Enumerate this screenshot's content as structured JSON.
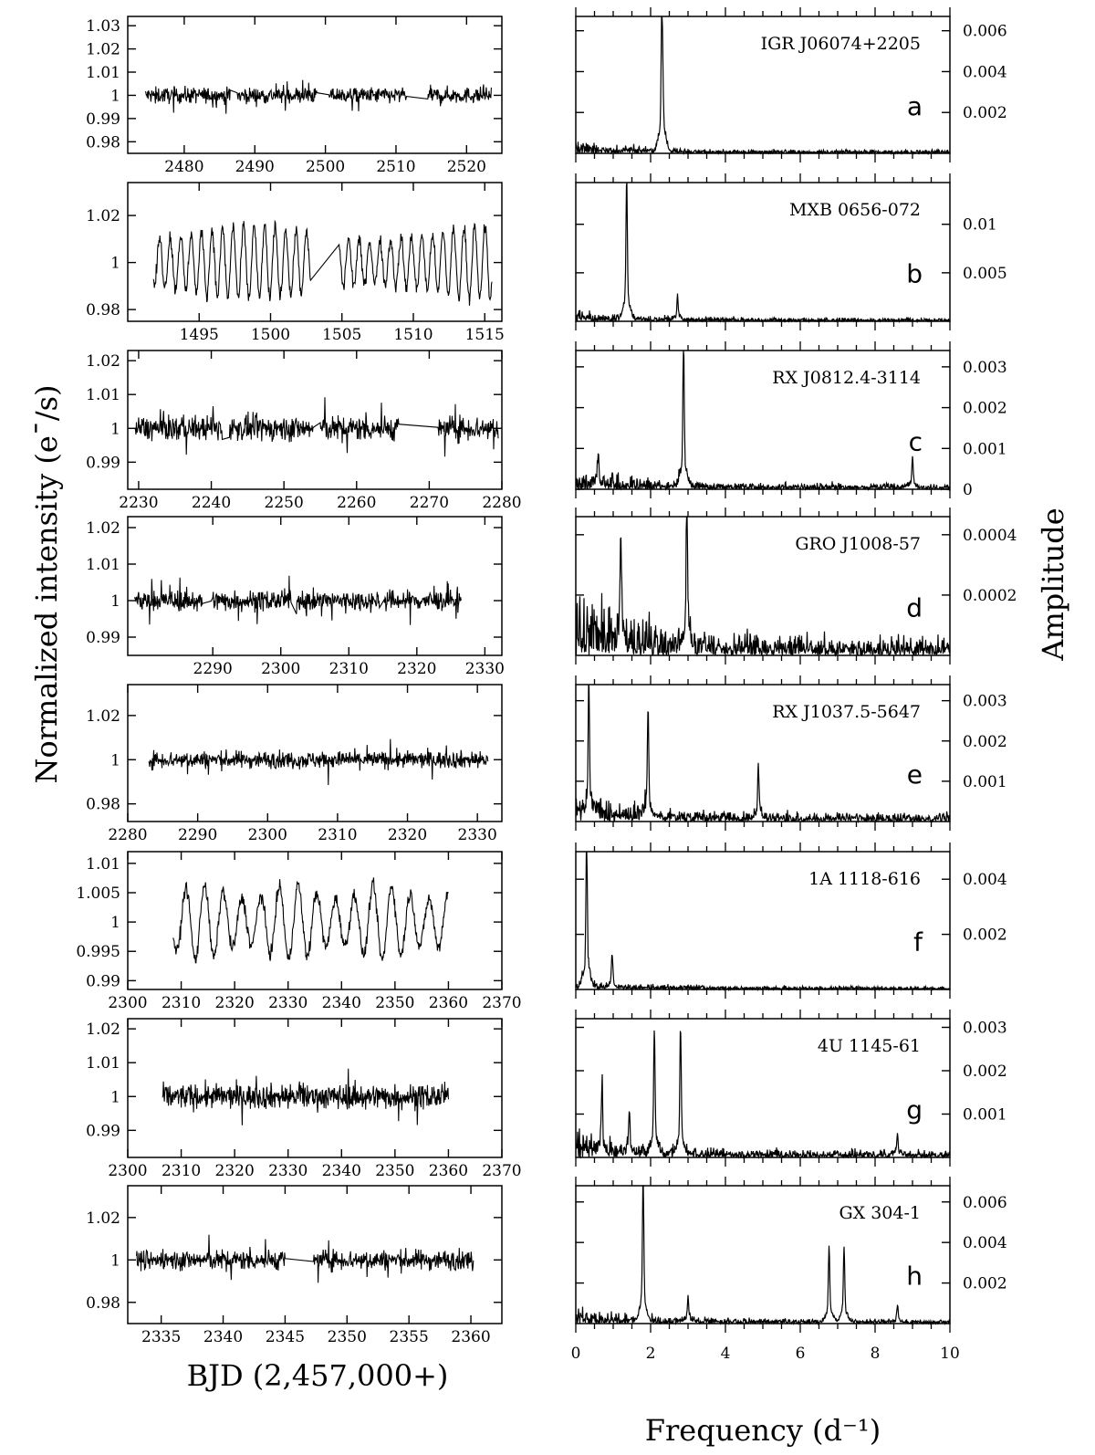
{
  "figure": {
    "left_ylabel": "Normalized intensity (e¯/s)",
    "right_ylabel": "Amplitude",
    "left_xlabel": "BJD (2,457,000+)",
    "right_xlabel": "Frequency (d⁻¹)",
    "freq_ticks": [
      "0",
      "2",
      "4",
      "6",
      "8",
      "10"
    ]
  },
  "chart_data": [
    {
      "type": "line",
      "panel": "a",
      "object": "IGR J06074+2205",
      "lc": {
        "x_ticks": [
          2480,
          2490,
          2500,
          2510,
          2520
        ],
        "xlim": [
          2472,
          2525
        ],
        "y_ticks": [
          "1.03",
          "1.02",
          "1.01",
          "1",
          "0.99",
          "0.98"
        ],
        "ylim": [
          0.975,
          1.034
        ],
        "segments": [
          [
            2474.5,
            2486.5
          ],
          [
            2487.5,
            2498.8
          ],
          [
            2500.5,
            2511.5
          ],
          [
            2514.5,
            2523.5
          ]
        ],
        "noise": 0.008,
        "ylabels_values": [
          1.03,
          1.02,
          1.01,
          1,
          0.99,
          0.98
        ]
      },
      "ps": {
        "y_ticks": [
          "0.006",
          "0.004",
          "0.002"
        ],
        "y_values": [
          0.006,
          0.004,
          0.002
        ],
        "ylim": [
          0,
          0.0067
        ],
        "peaks": [
          [
            2.3,
            0.0059
          ],
          [
            2.33,
            0.0015
          ]
        ],
        "base": 0.0003
      }
    },
    {
      "type": "line",
      "panel": "b",
      "object": "MXB 0656-072",
      "lc": {
        "x_ticks": [
          1495,
          1500,
          1505,
          1510,
          1515
        ],
        "xlim": [
          1490,
          1516.2
        ],
        "y_ticks": [
          "1.02",
          "1",
          "0.98"
        ],
        "y_values": [
          1.02,
          1,
          0.98
        ],
        "ylim": [
          0.975,
          1.034
        ],
        "segments": [
          [
            1491.8,
            1502.8
          ],
          [
            1504.8,
            1515.5
          ]
        ],
        "period": 0.735,
        "amp": 0.0155
      },
      "ps": {
        "y_ticks": [
          "0.01",
          "0.005"
        ],
        "y_values": [
          0.01,
          0.005
        ],
        "ylim": [
          0,
          0.0143
        ],
        "peaks": [
          [
            1.36,
            0.0125
          ],
          [
            2.72,
            0.002
          ]
        ],
        "base": 0.0006
      }
    },
    {
      "type": "line",
      "panel": "c",
      "object": "RX J0812.4-3114",
      "lc": {
        "x_ticks": [
          2230,
          2240,
          2250,
          2260,
          2270,
          2280
        ],
        "xlim": [
          2228.5,
          2280
        ],
        "y_ticks": [
          "1.02",
          "1.01",
          "1",
          "0.99"
        ],
        "y_values": [
          1.02,
          1.01,
          1,
          0.99
        ],
        "ylim": [
          0.982,
          1.023
        ],
        "segments": [
          [
            2229.5,
            2241.5
          ],
          [
            2242.5,
            2254
          ],
          [
            2255,
            2265.8
          ],
          [
            2271.2,
            2279.5
          ]
        ],
        "noise": 0.0085
      },
      "ps": {
        "y_ticks": [
          "0.003",
          "0.002",
          "0.001",
          "0"
        ],
        "y_values": [
          0.003,
          0.002,
          0.001,
          0
        ],
        "ylim": [
          0,
          0.0034
        ],
        "peaks": [
          [
            2.88,
            0.003
          ],
          [
            0.6,
            0.0007
          ],
          [
            9.0,
            0.0006
          ]
        ],
        "base": 0.00025
      }
    },
    {
      "type": "line",
      "panel": "d",
      "object": "GRO J1008-57",
      "lc": {
        "x_ticks": [
          2290,
          2300,
          2310,
          2320,
          2330
        ],
        "xlim": [
          2277.5,
          2332.5
        ],
        "y_ticks": [
          "1.02",
          "1.01",
          "1",
          "0.99"
        ],
        "y_values": [
          1.02,
          1.01,
          1,
          0.99
        ],
        "ylim": [
          0.985,
          1.023
        ],
        "segments": [
          [
            2278.5,
            2288.5
          ],
          [
            2289.8,
            2301.5
          ],
          [
            2302.3,
            2314.5
          ],
          [
            2315.2,
            2326.5
          ]
        ],
        "noise": 0.0065
      },
      "ps": {
        "y_ticks": [
          "0.0004",
          "0.0002"
        ],
        "y_values": [
          0.0004,
          0.0002
        ],
        "ylim": [
          0,
          0.00046
        ],
        "peaks": [
          [
            2.97,
            0.00043
          ],
          [
            1.2,
            0.00032
          ]
        ],
        "base": 0.00011
      }
    },
    {
      "type": "line",
      "panel": "e",
      "object": "RX J1037.5-5647",
      "lc": {
        "x_ticks": [
          2280,
          2290,
          2300,
          2310,
          2320,
          2330
        ],
        "xlim": [
          2280,
          2333.5
        ],
        "y_ticks": [
          "1.02",
          "1",
          "0.98"
        ],
        "y_values": [
          1.02,
          1,
          0.98
        ],
        "ylim": [
          0.972,
          1.034
        ],
        "segments": [
          [
            2283,
            2331.5
          ]
        ],
        "noise": 0.009
      },
      "ps": {
        "y_ticks": [
          "0.003",
          "0.002",
          "0.001"
        ],
        "y_values": [
          0.003,
          0.002,
          0.001
        ],
        "ylim": [
          0,
          0.0034
        ],
        "peaks": [
          [
            1.93,
            0.0023
          ],
          [
            4.88,
            0.0011
          ],
          [
            0.35,
            0.0028
          ]
        ],
        "base": 0.0004
      }
    },
    {
      "type": "line",
      "panel": "f",
      "object": "1A 1118-616",
      "lc": {
        "x_ticks": [
          2300,
          2310,
          2320,
          2330,
          2340,
          2350,
          2360,
          2370
        ],
        "xlim": [
          2300,
          2370
        ],
        "y_ticks": [
          "1.01",
          "1.005",
          "1",
          "0.995",
          "0.99"
        ],
        "y_values": [
          1.01,
          1.005,
          1,
          0.995,
          0.99
        ],
        "ylim": [
          0.9885,
          1.012
        ],
        "segments": [
          [
            2308.5,
            2360
          ]
        ],
        "period": 3.5,
        "amp": 0.0065
      },
      "ps": {
        "y_ticks": [
          "0.004",
          "0.002"
        ],
        "y_values": [
          0.004,
          0.002
        ],
        "ylim": [
          0,
          0.005
        ],
        "peaks": [
          [
            0.29,
            0.0046
          ],
          [
            0.97,
            0.001
          ]
        ],
        "base": 0.0002
      }
    },
    {
      "type": "line",
      "panel": "g",
      "object": "4U 1145-61",
      "lc": {
        "x_ticks": [
          2300,
          2310,
          2320,
          2330,
          2340,
          2350,
          2360,
          2370
        ],
        "xlim": [
          2300,
          2370
        ],
        "y_ticks": [
          "1.02",
          "1.01",
          "1",
          "0.99"
        ],
        "y_values": [
          1.02,
          1.01,
          1,
          0.99
        ],
        "ylim": [
          0.982,
          1.023
        ],
        "segments": [
          [
            2306.5,
            2320.5
          ],
          [
            2320.8,
            2334.2
          ],
          [
            2334.5,
            2360
          ]
        ],
        "noise": 0.0085
      },
      "ps": {
        "y_ticks": [
          "0.003",
          "0.002",
          "0.001"
        ],
        "y_values": [
          0.003,
          0.002,
          0.001
        ],
        "ylim": [
          0,
          0.0032
        ],
        "peaks": [
          [
            2.1,
            0.0025
          ],
          [
            2.8,
            0.0025
          ],
          [
            0.7,
            0.0012
          ],
          [
            1.43,
            0.0009
          ],
          [
            8.6,
            0.0004
          ]
        ],
        "base": 0.0003
      }
    },
    {
      "type": "line",
      "panel": "h",
      "object": "GX 304-1",
      "lc": {
        "x_ticks": [
          2335,
          2340,
          2345,
          2350,
          2355,
          2360
        ],
        "xlim": [
          2332.3,
          2362.5
        ],
        "y_ticks": [
          "1.02",
          "1",
          "0.98"
        ],
        "y_values": [
          1.02,
          1,
          0.98
        ],
        "ylim": [
          0.97,
          1.035
        ],
        "segments": [
          [
            2333,
            2345
          ],
          [
            2347.3,
            2360.2
          ]
        ],
        "noise": 0.011
      },
      "ps": {
        "y_ticks": [
          "0.006",
          "0.004",
          "0.002"
        ],
        "y_values": [
          0.006,
          0.004,
          0.002
        ],
        "ylim": [
          0,
          0.0068
        ],
        "peaks": [
          [
            1.8,
            0.0061
          ],
          [
            6.77,
            0.0032
          ],
          [
            7.17,
            0.0032
          ],
          [
            3.0,
            0.001
          ],
          [
            8.6,
            0.0007
          ]
        ],
        "base": 0.0004
      }
    }
  ]
}
